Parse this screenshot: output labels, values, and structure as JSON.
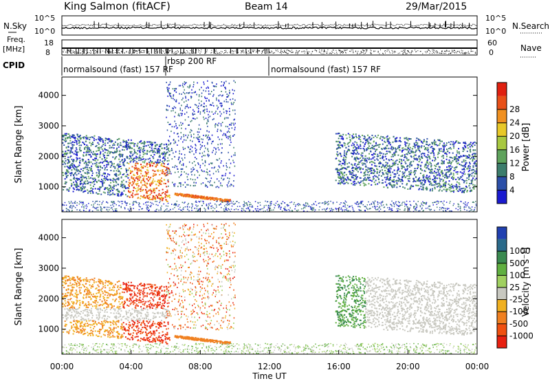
{
  "header": {
    "title": "King Salmon (fitACF)",
    "beam": "Beam 14",
    "date": "29/Mar/2015"
  },
  "strips": {
    "nsky_label": "N.Sky",
    "nsearch_label": "N.Search",
    "nsky_ticks": [
      "10^5",
      "10^0"
    ],
    "nsearch_ticks": [
      "10^5",
      "10^0"
    ],
    "freq_label_1": "Freq.",
    "freq_label_2": "[MHz]",
    "freq_ticks": [
      "18",
      "8"
    ],
    "nave_label": "Nave",
    "nave_ticks": [
      "60",
      "0"
    ],
    "cpid_label": "CPID",
    "cpid_segments": [
      {
        "label": "normalsound (fast) 157 RF",
        "start": 0,
        "end": 6
      },
      {
        "label": "rbsp 200 RF",
        "start": 6,
        "end": 12
      },
      {
        "label": "normalsound (fast) 157 RF",
        "start": 12,
        "end": 24
      }
    ]
  },
  "power_colorbar": {
    "label": "Power [dB]",
    "ticks": [
      "4",
      "8",
      "12",
      "16",
      "20",
      "24",
      "28"
    ],
    "colors": [
      "#1a1ad0",
      "#2b4fa8",
      "#3c7d6c",
      "#5fa35c",
      "#a8c840",
      "#e8c828",
      "#f09020",
      "#e85018",
      "#e02010"
    ]
  },
  "velocity_colorbar": {
    "label": "Velocity [m s⁻¹]",
    "ticks": [
      "1000",
      "500",
      "100",
      "25",
      "-25",
      "-100",
      "-500",
      "-1000"
    ],
    "colors": [
      "#2040b0",
      "#2a6a8a",
      "#3a8a50",
      "#60b040",
      "#a0d060",
      "#c8c8c0",
      "#f0b020",
      "#f08020",
      "#f05010",
      "#e82010"
    ]
  },
  "chart_data": [
    {
      "type": "heatmap",
      "title": "",
      "ylabel": "Slant Range [km]",
      "xlabel": "",
      "x_ticks": [
        "00:00",
        "04:00",
        "08:00",
        "12:00",
        "16:00",
        "20:00",
        "00:00"
      ],
      "y_ticks": [
        "1000",
        "2000",
        "3000",
        "4000"
      ],
      "xlim_hours": [
        0,
        24
      ],
      "ylim_km": [
        180,
        4600
      ],
      "colorbar": "Power [dB]"
    },
    {
      "type": "heatmap",
      "title": "",
      "ylabel": "Slant Range [km]",
      "xlabel": "Time UT",
      "x_ticks": [
        "00:00",
        "04:00",
        "08:00",
        "12:00",
        "16:00",
        "20:00",
        "00:00"
      ],
      "y_ticks": [
        "1000",
        "2000",
        "3000",
        "4000"
      ],
      "xlim_hours": [
        0,
        24
      ],
      "ylim_km": [
        180,
        4600
      ],
      "colorbar": "Velocity [m s⁻¹]"
    }
  ]
}
